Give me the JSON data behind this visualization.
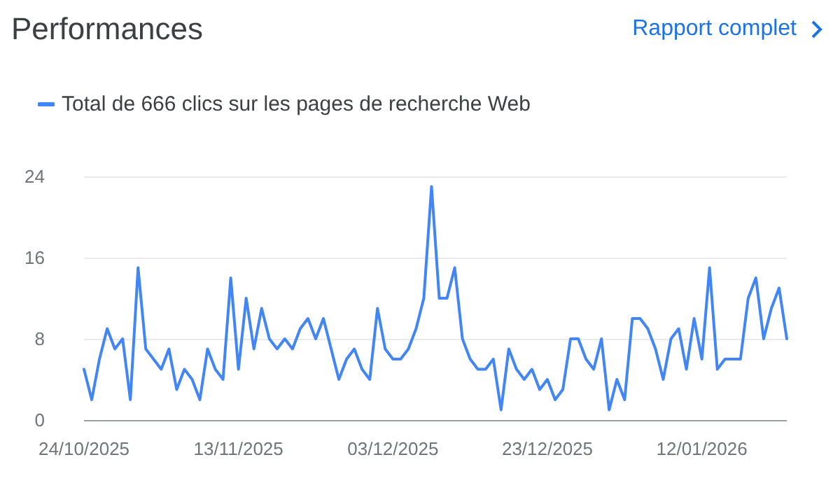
{
  "chart_data": {
    "type": "line",
    "title": "Performances",
    "annotations": [
      "Rapport complet"
    ],
    "x": [
      "2025-10-24",
      "2025-10-25",
      "2025-10-26",
      "2025-10-27",
      "2025-10-28",
      "2025-10-29",
      "2025-10-30",
      "2025-10-31",
      "2025-11-01",
      "2025-11-02",
      "2025-11-03",
      "2025-11-04",
      "2025-11-05",
      "2025-11-06",
      "2025-11-07",
      "2025-11-08",
      "2025-11-09",
      "2025-11-10",
      "2025-11-11",
      "2025-11-12",
      "2025-11-13",
      "2025-11-14",
      "2025-11-15",
      "2025-11-16",
      "2025-11-17",
      "2025-11-18",
      "2025-11-19",
      "2025-11-20",
      "2025-11-21",
      "2025-11-22",
      "2025-11-23",
      "2025-11-24",
      "2025-11-25",
      "2025-11-26",
      "2025-11-27",
      "2025-11-28",
      "2025-11-29",
      "2025-11-30",
      "2025-12-01",
      "2025-12-02",
      "2025-12-03",
      "2025-12-04",
      "2025-12-05",
      "2025-12-06",
      "2025-12-07",
      "2025-12-08",
      "2025-12-09",
      "2025-12-10",
      "2025-12-11",
      "2025-12-12",
      "2025-12-13",
      "2025-12-14",
      "2025-12-15",
      "2025-12-16",
      "2025-12-17",
      "2025-12-18",
      "2025-12-19",
      "2025-12-20",
      "2025-12-21",
      "2025-12-22",
      "2025-12-23",
      "2025-12-24",
      "2025-12-25",
      "2025-12-26",
      "2025-12-27",
      "2025-12-28",
      "2025-12-29",
      "2025-12-30",
      "2025-12-31",
      "2026-01-01",
      "2026-01-02",
      "2026-01-03",
      "2026-01-04",
      "2026-01-05",
      "2026-01-06",
      "2026-01-07",
      "2026-01-08",
      "2026-01-09",
      "2026-01-10",
      "2026-01-11",
      "2026-01-12",
      "2026-01-13",
      "2026-01-14",
      "2026-01-15",
      "2026-01-16",
      "2026-01-17",
      "2026-01-18",
      "2026-01-19",
      "2026-01-20",
      "2026-01-21",
      "2026-01-22",
      "2026-01-23"
    ],
    "series": [
      {
        "name": "Total de 666 clics sur les pages de recherche Web",
        "color": "#4285f4",
        "values": [
          5,
          2,
          6,
          9,
          7,
          8,
          2,
          15,
          7,
          6,
          5,
          7,
          3,
          5,
          4,
          2,
          7,
          5,
          4,
          14,
          5,
          12,
          7,
          11,
          8,
          7,
          8,
          7,
          9,
          10,
          8,
          10,
          7,
          4,
          6,
          7,
          5,
          4,
          11,
          7,
          6,
          6,
          7,
          9,
          12,
          23,
          12,
          12,
          15,
          8,
          6,
          5,
          5,
          6,
          1,
          7,
          5,
          4,
          5,
          3,
          4,
          2,
          3,
          8,
          8,
          6,
          5,
          8,
          1,
          4,
          2,
          10,
          10,
          9,
          7,
          4,
          8,
          9,
          5,
          10,
          6,
          15,
          5,
          6,
          6,
          6,
          12,
          14,
          8,
          11,
          13,
          8
        ]
      }
    ],
    "xlim": [
      "2025-10-24",
      "2026-01-23"
    ],
    "xticks": [
      {
        "value": "2025-10-24",
        "label": "24/10/2025"
      },
      {
        "value": "2025-11-13",
        "label": "13/11/2025"
      },
      {
        "value": "2025-12-03",
        "label": "03/12/2025"
      },
      {
        "value": "2025-12-23",
        "label": "23/12/2025"
      },
      {
        "value": "2026-01-12",
        "label": "12/01/2026"
      }
    ],
    "ylim": [
      0,
      24
    ],
    "yticks": [
      0,
      8,
      16,
      24
    ],
    "grid": "y",
    "legend": "top left",
    "marker": "none",
    "line_style": "solid"
  }
}
